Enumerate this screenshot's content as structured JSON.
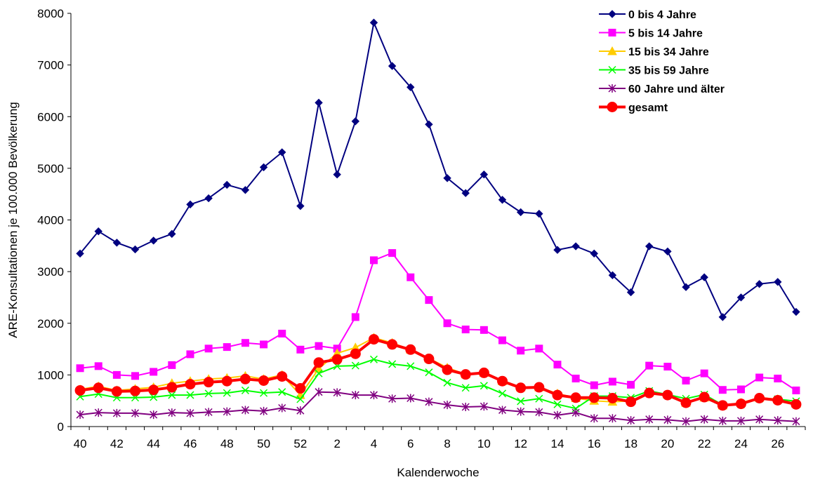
{
  "chart_data": {
    "type": "line",
    "title": "",
    "xlabel": "Kalenderwoche",
    "ylabel": "ARE-Konsultationen je 100.000 Bevölkerung",
    "ylim": [
      0,
      8000
    ],
    "yticks": [
      0,
      1000,
      2000,
      3000,
      4000,
      5000,
      6000,
      7000,
      8000
    ],
    "grid": false,
    "legend_position": "top-right",
    "categories": [
      "40",
      "41",
      "42",
      "43",
      "44",
      "45",
      "46",
      "47",
      "48",
      "49",
      "50",
      "51",
      "52",
      "1",
      "2",
      "3",
      "4",
      "5",
      "6",
      "7",
      "8",
      "9",
      "10",
      "11",
      "12",
      "13",
      "14",
      "15",
      "16",
      "17",
      "18",
      "19",
      "20",
      "21",
      "22",
      "23",
      "24",
      "25",
      "26",
      "27"
    ],
    "tick_labels": [
      "40",
      "42",
      "44",
      "46",
      "48",
      "50",
      "52",
      "2",
      "4",
      "6",
      "8",
      "10",
      "12",
      "14",
      "16",
      "18",
      "20",
      "22",
      "24",
      "26"
    ],
    "series": [
      {
        "name": "0 bis 4 Jahre",
        "color": "#000080",
        "marker": "diamond",
        "values": [
          3350,
          3780,
          3560,
          3430,
          3600,
          3730,
          4300,
          4420,
          4680,
          4580,
          5020,
          5310,
          4270,
          6270,
          4880,
          5910,
          7820,
          6980,
          6570,
          5850,
          4810,
          4520,
          4880,
          4390,
          4150,
          4120,
          3420,
          3490,
          3350,
          2930,
          2600,
          3490,
          3390,
          2700,
          2890,
          2120,
          2500,
          2760,
          2800,
          2220
        ]
      },
      {
        "name": "5 bis 14 Jahre",
        "color": "#FF00FF",
        "marker": "square",
        "values": [
          1130,
          1170,
          1000,
          980,
          1060,
          1190,
          1400,
          1510,
          1540,
          1620,
          1590,
          1800,
          1490,
          1560,
          1510,
          2120,
          3220,
          3360,
          2890,
          2450,
          2000,
          1880,
          1870,
          1670,
          1470,
          1510,
          1200,
          930,
          800,
          870,
          810,
          1180,
          1160,
          890,
          1030,
          710,
          720,
          950,
          930,
          700
        ]
      },
      {
        "name": "15 bis 34 Jahre",
        "color": "#FFCC00",
        "marker": "triangle",
        "values": [
          720,
          780,
          700,
          730,
          760,
          840,
          880,
          920,
          940,
          980,
          920,
          1000,
          610,
          1120,
          1420,
          1530,
          1720,
          1620,
          1490,
          1320,
          1140,
          1010,
          1040,
          880,
          760,
          760,
          640,
          550,
          500,
          480,
          500,
          660,
          620,
          460,
          560,
          410,
          460,
          560,
          530,
          440
        ]
      },
      {
        "name": "35 bis 59 Jahre",
        "color": "#00FF00",
        "marker": "x",
        "values": [
          580,
          630,
          560,
          560,
          570,
          610,
          610,
          640,
          650,
          700,
          650,
          670,
          530,
          1030,
          1170,
          1180,
          1300,
          1210,
          1170,
          1050,
          850,
          750,
          790,
          640,
          490,
          540,
          430,
          350,
          590,
          590,
          560,
          690,
          620,
          540,
          620,
          420,
          430,
          540,
          530,
          490
        ]
      },
      {
        "name": "60 Jahre und älter",
        "color": "#800080",
        "marker": "star",
        "values": [
          230,
          270,
          260,
          260,
          230,
          270,
          260,
          280,
          290,
          320,
          300,
          360,
          310,
          670,
          660,
          610,
          610,
          540,
          550,
          480,
          420,
          380,
          390,
          320,
          290,
          280,
          220,
          270,
          160,
          160,
          120,
          140,
          130,
          100,
          140,
          110,
          110,
          140,
          120,
          100
        ]
      },
      {
        "name": "gesamt",
        "color": "#FF0000",
        "marker": "circle",
        "values": [
          700,
          750,
          680,
          690,
          710,
          760,
          820,
          860,
          880,
          920,
          890,
          970,
          740,
          1240,
          1300,
          1410,
          1690,
          1590,
          1490,
          1310,
          1100,
          1010,
          1040,
          880,
          750,
          760,
          610,
          560,
          560,
          550,
          480,
          650,
          610,
          460,
          570,
          410,
          440,
          550,
          510,
          430
        ]
      }
    ]
  }
}
